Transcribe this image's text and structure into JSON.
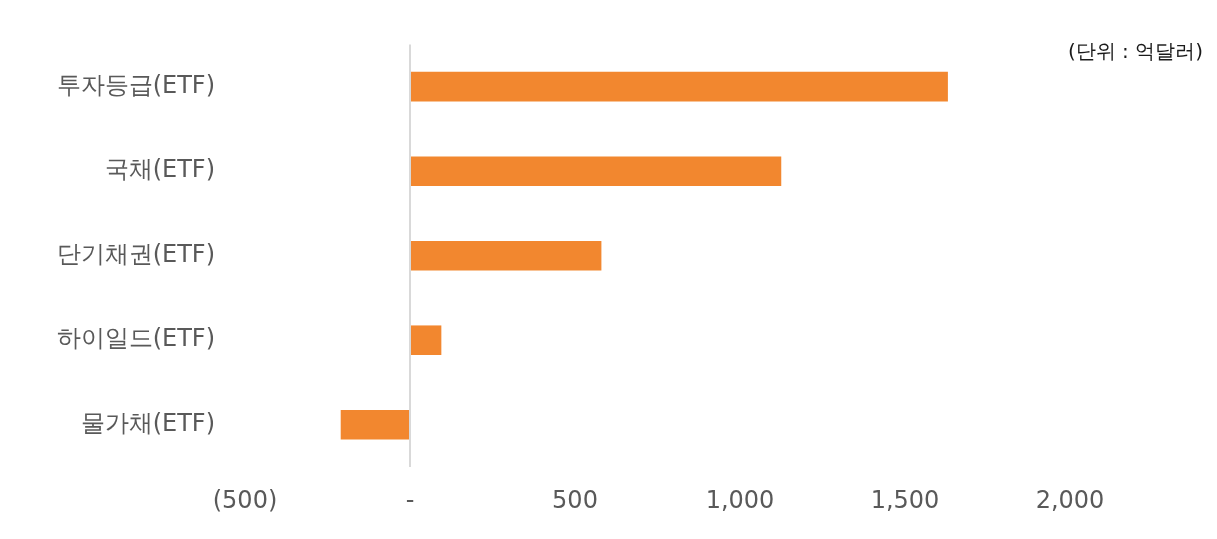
{
  "chart_data": {
    "type": "bar",
    "orientation": "horizontal",
    "categories": [
      "투자등급(ETF)",
      "국채(ETF)",
      "단기채권(ETF)",
      "하이일드(ETF)",
      "물가채(ETF)"
    ],
    "values": [
      1630,
      1125,
      580,
      95,
      -210
    ],
    "color": "#f2872f",
    "xlim": [
      -500,
      2000
    ],
    "xticks": [
      {
        "value": -500,
        "label": "(500)"
      },
      {
        "value": 0,
        "label": "-"
      },
      500,
      {
        "value": 1000,
        "label": "1,000"
      },
      {
        "value": 1500,
        "label": "1,500"
      },
      {
        "value": 2000,
        "label": "2,000"
      }
    ],
    "grid": false,
    "ref_lines": [
      {
        "axis": "x",
        "value": 0,
        "color": "#d9d9d9"
      }
    ],
    "annotations": [
      "(단위 : 억달러)"
    ]
  }
}
